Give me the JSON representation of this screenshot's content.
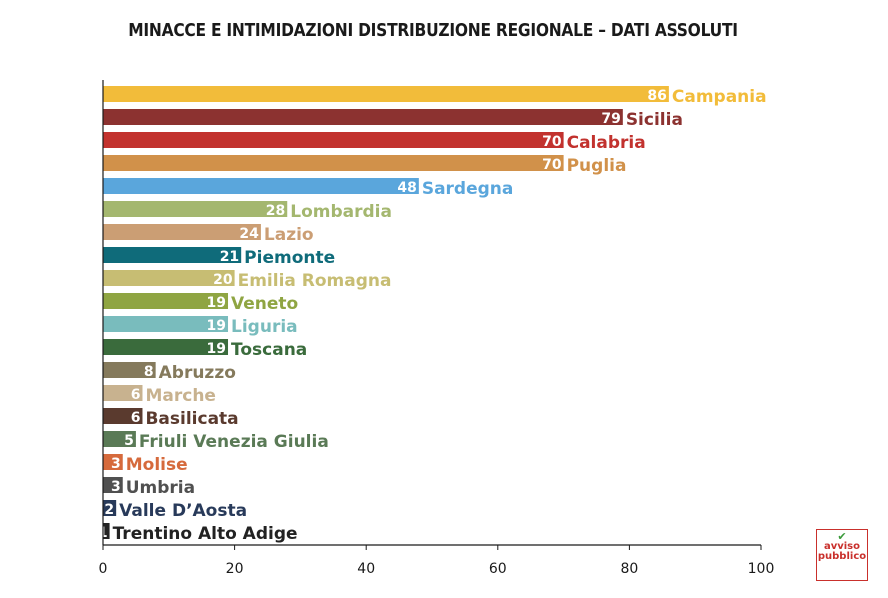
{
  "chart_data": {
    "type": "bar",
    "orientation": "horizontal",
    "title": "MINACCE E INTIMIDAZIONI DISTRIBUZIONE REGIONALE – DATI ASSOLUTI",
    "xlabel": "",
    "ylabel": "",
    "xlim": [
      0,
      100
    ],
    "xticks": [
      "0",
      "20",
      "40",
      "60",
      "80",
      "100"
    ],
    "grid": false,
    "legend": "none",
    "categories": [
      "Campania",
      "Sicilia",
      "Calabria",
      "Puglia",
      "Sardegna",
      "Lombardia",
      "Lazio",
      "Piemonte",
      "Emilia Romagna",
      "Veneto",
      "Liguria",
      "Toscana",
      "Abruzzo",
      "Marche",
      "Basilicata",
      "Friuli Venezia Giulia",
      "Molise",
      "Umbria",
      "Valle D’Aosta",
      "Trentino Alto Adige"
    ],
    "values": [
      86,
      79,
      70,
      70,
      48,
      28,
      24,
      21,
      20,
      19,
      19,
      19,
      8,
      6,
      6,
      5,
      3,
      3,
      2,
      1
    ],
    "colors": [
      "#f2bc3a",
      "#8c3230",
      "#c2322e",
      "#d1914a",
      "#5aa6dc",
      "#a4b76f",
      "#cb9e74",
      "#0f6b7a",
      "#c7bd73",
      "#8fa542",
      "#79bcbd",
      "#3a6b3c",
      "#857a5c",
      "#c8b28f",
      "#5a3a2e",
      "#5a7a56",
      "#d66a3c",
      "#505050",
      "#283a5a",
      "#222222"
    ]
  },
  "logo": {
    "line1": "avviso",
    "line2": "pubblico"
  }
}
